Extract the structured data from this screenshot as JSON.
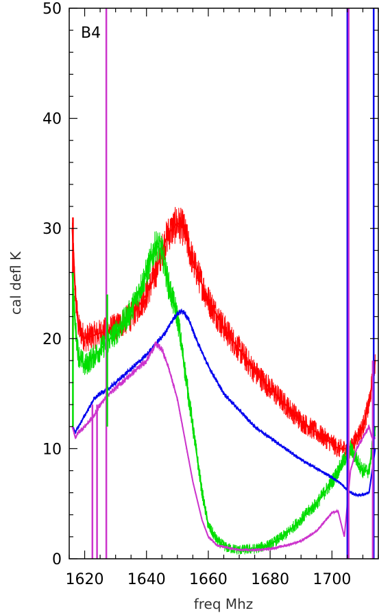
{
  "chart_data": {
    "type": "line",
    "panel_label": "B4",
    "xlabel": "freq Mhz",
    "ylabel": "cal defl K",
    "xlim": [
      1615,
      1715
    ],
    "ylim": [
      0,
      50
    ],
    "x_ticks": [
      1620,
      1640,
      1660,
      1680,
      1700
    ],
    "y_ticks": [
      0,
      10,
      20,
      30,
      40,
      50
    ],
    "grid": false,
    "legend": "none",
    "series": [
      {
        "color": "#ff0000",
        "noise": 1.2,
        "x": [
          1616,
          1617,
          1618,
          1620,
          1625,
          1630,
          1635,
          1640,
          1643,
          1645,
          1647,
          1650,
          1652,
          1655,
          1660,
          1665,
          1670,
          1675,
          1680,
          1685,
          1690,
          1695,
          1700,
          1702,
          1704,
          1706,
          1708,
          1710,
          1712,
          1713,
          1714
        ],
        "y": [
          30,
          24,
          21,
          20,
          20.5,
          21,
          22,
          24,
          26,
          28,
          29.5,
          30.5,
          30,
          27,
          23.5,
          21,
          19,
          17,
          15.5,
          14,
          12.5,
          11.5,
          10.5,
          10,
          10,
          10,
          11,
          12,
          14,
          16,
          18
        ]
      },
      {
        "color": "#00dd00",
        "noise": 1.1,
        "x": [
          1616,
          1617,
          1618,
          1620,
          1625,
          1630,
          1635,
          1640,
          1643,
          1645,
          1647,
          1650,
          1652,
          1655,
          1658,
          1660,
          1663,
          1666,
          1670,
          1675,
          1680,
          1685,
          1690,
          1695,
          1700,
          1702,
          1704,
          1706,
          1708,
          1710,
          1712,
          1713,
          1714
        ],
        "y": [
          26,
          21,
          18.5,
          17.5,
          19,
          20.5,
          22.5,
          26,
          28.5,
          28,
          25,
          22,
          18,
          12,
          6,
          3,
          1.6,
          1,
          0.8,
          0.9,
          1.3,
          2.2,
          3.6,
          5,
          7,
          8,
          9,
          10,
          9,
          8,
          8,
          10,
          12
        ]
      },
      {
        "color": "#0000ee",
        "noise": 0.25,
        "x": [
          1616,
          1617,
          1618,
          1620,
          1623,
          1625,
          1628,
          1632,
          1636,
          1640,
          1643,
          1646,
          1648,
          1650,
          1652,
          1654,
          1656,
          1660,
          1665,
          1670,
          1675,
          1680,
          1685,
          1690,
          1695,
          1700,
          1702,
          1703,
          1704,
          1706,
          1708,
          1710,
          1712,
          1713,
          1714
        ],
        "y": [
          12,
          11.5,
          12,
          13,
          14.5,
          15,
          15.5,
          16.5,
          17.5,
          18.5,
          19.5,
          20.5,
          21.5,
          22.3,
          22.5,
          21.5,
          20,
          17.5,
          15,
          13.5,
          12,
          11,
          10,
          9,
          8.2,
          7.4,
          7,
          6.8,
          6.5,
          6,
          5.8,
          5.8,
          6,
          8,
          10
        ]
      },
      {
        "color": "#cc33cc",
        "noise": 0.3,
        "x": [
          1616,
          1617,
          1618,
          1620,
          1623,
          1625,
          1628,
          1632,
          1636,
          1640,
          1643,
          1645,
          1647,
          1650,
          1652,
          1655,
          1658,
          1660,
          1663,
          1666,
          1670,
          1675,
          1680,
          1685,
          1690,
          1695,
          1700,
          1702,
          1704,
          1706,
          1708,
          1710,
          1712,
          1713,
          1714
        ],
        "y": [
          12,
          11,
          11.5,
          12,
          13,
          14,
          15,
          16,
          17,
          18,
          19.5,
          19,
          17.5,
          14.5,
          11.5,
          7,
          3.5,
          2,
          1.2,
          1,
          0.8,
          0.8,
          0.9,
          1.2,
          1.6,
          2.5,
          4.2,
          4.3,
          2,
          8,
          10,
          11,
          12,
          11,
          11
        ]
      }
    ],
    "spikes": [
      {
        "x": 1616.2,
        "y_from": 18,
        "y_to": 31,
        "color": "#ff0000"
      },
      {
        "x": 1616.2,
        "y_from": 12,
        "y_to": 26,
        "color": "#00dd00"
      },
      {
        "x": 1622.5,
        "y_from": 0,
        "y_to": 14,
        "color": "#cc33cc"
      },
      {
        "x": 1624.0,
        "y_from": 0,
        "y_to": 14,
        "color": "#cc33cc"
      },
      {
        "x": 1627.0,
        "y_from": 0,
        "y_to": 50,
        "color": "#cc33cc"
      },
      {
        "x": 1627.3,
        "y_from": 12,
        "y_to": 24,
        "color": "#00dd00"
      },
      {
        "x": 1705.0,
        "y_from": 0,
        "y_to": 50,
        "color": "#0000ee"
      },
      {
        "x": 1705.4,
        "y_from": 0,
        "y_to": 50,
        "color": "#cc33cc"
      },
      {
        "x": 1713.5,
        "y_from": 0,
        "y_to": 50,
        "color": "#0000ee"
      },
      {
        "x": 1713.2,
        "y_from": 0,
        "y_to": 18,
        "color": "#cc33cc"
      }
    ]
  }
}
